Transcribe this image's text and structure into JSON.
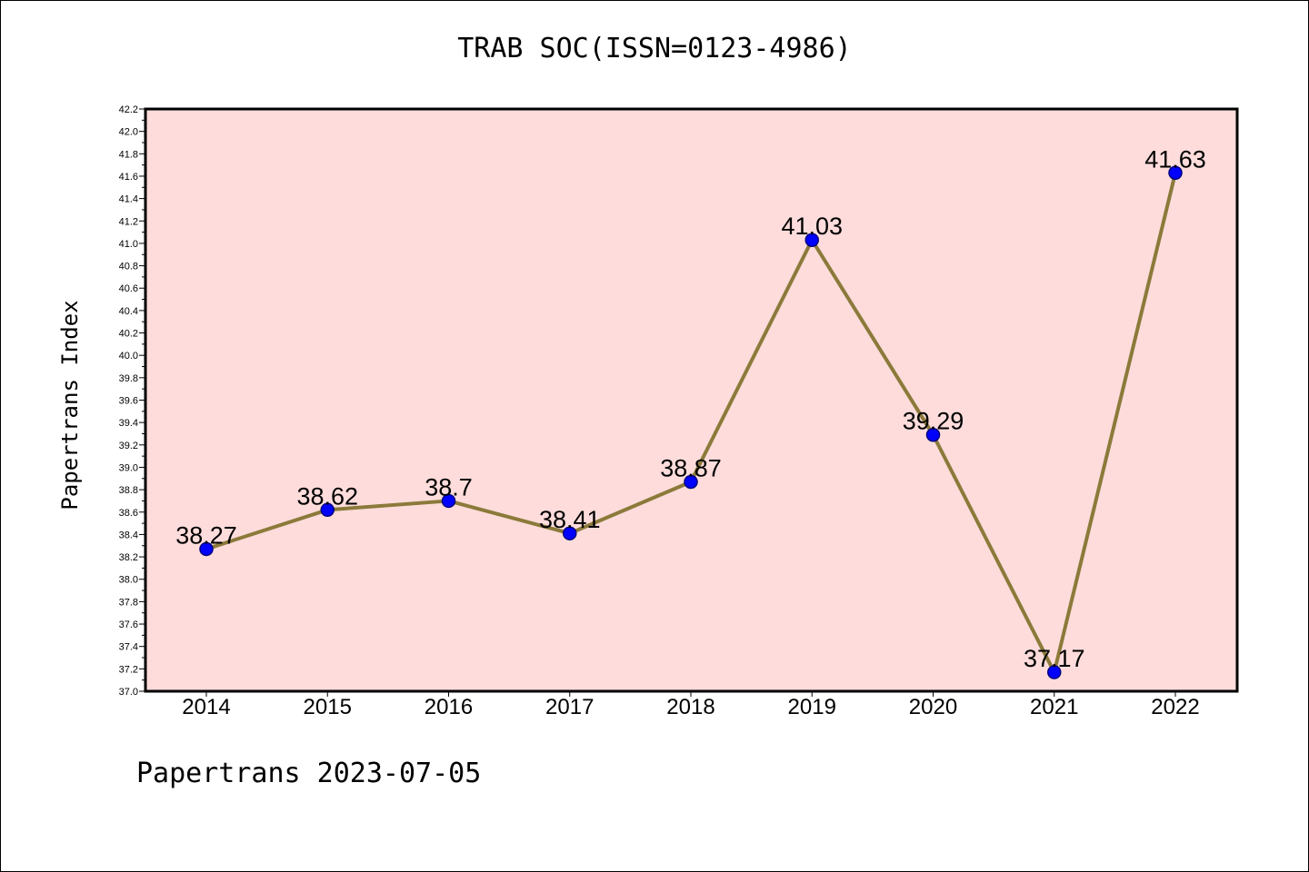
{
  "chart_data": {
    "type": "line",
    "title": "TRAB SOC(ISSN=0123-4986)",
    "xlabel": "",
    "ylabel": "Papertrans Index",
    "footer": "Papertrans 2023-07-05",
    "categories": [
      "2014",
      "2015",
      "2016",
      "2017",
      "2018",
      "2019",
      "2020",
      "2021",
      "2022"
    ],
    "values": [
      38.27,
      38.62,
      38.7,
      38.41,
      38.87,
      41.03,
      39.29,
      37.17,
      41.63
    ],
    "value_labels": [
      "38.27",
      "38.62",
      "38.7",
      "38.41",
      "38.87",
      "41.03",
      "39.29",
      "37.17",
      "41.63"
    ],
    "ylim": [
      37.0,
      42.2
    ],
    "y_major_step": 0.2,
    "y_tick_labels": [
      "37.0",
      "37.2",
      "37.4",
      "37.6",
      "37.8",
      "38.0",
      "38.2",
      "38.4",
      "38.6",
      "38.8",
      "39.0",
      "39.2",
      "39.4",
      "39.6",
      "39.8",
      "40.0",
      "40.2",
      "40.4",
      "40.6",
      "40.8",
      "41.0",
      "41.2",
      "41.4",
      "41.6",
      "41.8",
      "42.0",
      "42.2"
    ],
    "grid": false,
    "legend": "none",
    "colors": {
      "plot_background": "#fddcdb",
      "line": "#8b7a3a",
      "marker_fill": "#0000ff",
      "marker_edge": "#000080"
    }
  }
}
